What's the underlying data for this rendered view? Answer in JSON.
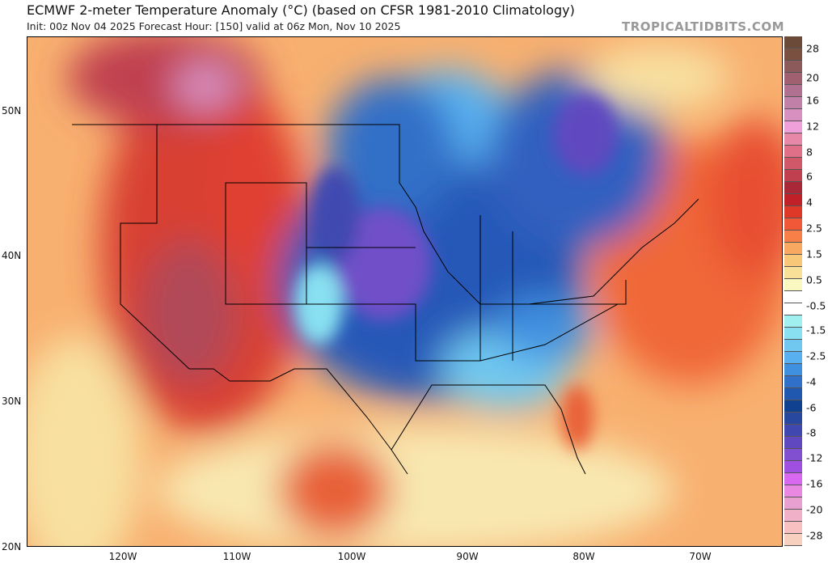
{
  "header": {
    "title": "ECMWF 2-meter Temperature Anomaly (°C) (based on CFSR 1981-2010 Climatology)",
    "subtitle": "Init: 00z Nov 04 2025   Forecast Hour: [150]   valid at 06z Mon, Nov 10 2025",
    "brand": "TROPICALTIDBITS.COM"
  },
  "map": {
    "lat_labels": [
      "50N",
      "40N",
      "30N",
      "20N"
    ],
    "lon_labels": [
      "120W",
      "110W",
      "100W",
      "90W",
      "80W",
      "70W"
    ]
  },
  "colorbar": {
    "labels": [
      "28",
      "20",
      "16",
      "12",
      "8",
      "6",
      "4",
      "2.5",
      "1.5",
      "0.5",
      "-0.5",
      "-1.5",
      "-2.5",
      "-4",
      "-6",
      "-8",
      "-12",
      "-16",
      "-20",
      "-28"
    ],
    "colors": [
      "#6b4a3a",
      "#7a5040",
      "#8c5a5a",
      "#a06070",
      "#b07090",
      "#c080a8",
      "#d890c0",
      "#f0a0d8",
      "#e888a8",
      "#e07088",
      "#d05868",
      "#c04050",
      "#a82838",
      "#c02028",
      "#e03828",
      "#f05838",
      "#f88048",
      "#f8a860",
      "#f8c878",
      "#f8e098",
      "#f8f8c0",
      "#ffffff",
      "#ffffff",
      "#a0f0f0",
      "#88e0f0",
      "#70c8f0",
      "#58b0f0",
      "#4090e0",
      "#3070c8",
      "#2058b0",
      "#104090",
      "#2848a0",
      "#4048b0",
      "#6048c0",
      "#8050d0",
      "#a050e0",
      "#d868f0",
      "#e888e0",
      "#e8a0d0",
      "#f0b0c8",
      "#f8c0c0",
      "#f8d0c0"
    ]
  }
}
